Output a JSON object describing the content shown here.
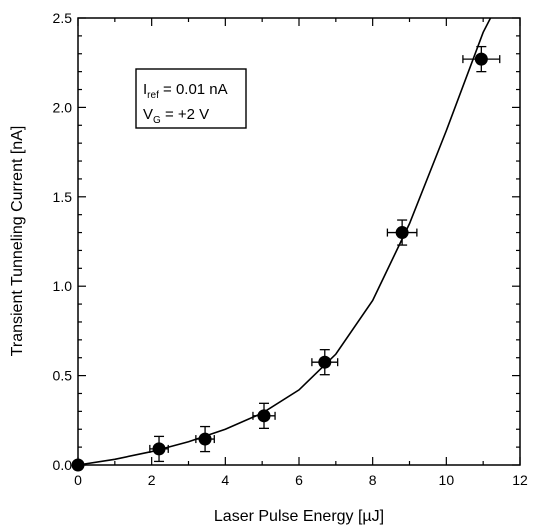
{
  "chart_data": {
    "type": "scatter",
    "xlabel": "Laser Pulse Energy  [µJ]",
    "ylabel": "Transient Tunneling Current [nA]",
    "xlim": [
      0,
      12
    ],
    "ylim": [
      0,
      2.5
    ],
    "x_ticks": [
      "0",
      "2",
      "4",
      "6",
      "8",
      "10",
      "12"
    ],
    "y_ticks": [
      "0.0",
      "0.5",
      "1.0",
      "1.5",
      "2.0",
      "2.5"
    ],
    "grid": false,
    "series": [
      {
        "points": [
          {
            "x": 0.0,
            "y": 0.0,
            "xerr": 0.0,
            "yerr": 0.0
          },
          {
            "x": 2.2,
            "y": 0.09,
            "xerr": 0.25,
            "yerr": 0.07
          },
          {
            "x": 3.45,
            "y": 0.145,
            "xerr": 0.25,
            "yerr": 0.07
          },
          {
            "x": 5.05,
            "y": 0.275,
            "xerr": 0.3,
            "yerr": 0.07
          },
          {
            "x": 6.7,
            "y": 0.575,
            "xerr": 0.35,
            "yerr": 0.07
          },
          {
            "x": 8.8,
            "y": 1.3,
            "xerr": 0.4,
            "yerr": 0.07
          },
          {
            "x": 10.95,
            "y": 2.27,
            "xerr": 0.5,
            "yerr": 0.07
          }
        ]
      }
    ],
    "fit_curve": {
      "x": [
        0,
        1,
        2,
        3,
        4,
        5,
        6,
        7,
        8,
        9,
        10,
        11,
        11.2
      ],
      "y": [
        0,
        0.032,
        0.075,
        0.13,
        0.2,
        0.29,
        0.42,
        0.62,
        0.92,
        1.35,
        1.87,
        2.42,
        2.5
      ]
    },
    "legend": {
      "position": "top-left",
      "line1": {
        "main": "I",
        "sub": "ref",
        "rest": " = 0.01 nA"
      },
      "line2": {
        "main": "V",
        "sub": "G",
        "rest": " = +2 V"
      }
    }
  }
}
